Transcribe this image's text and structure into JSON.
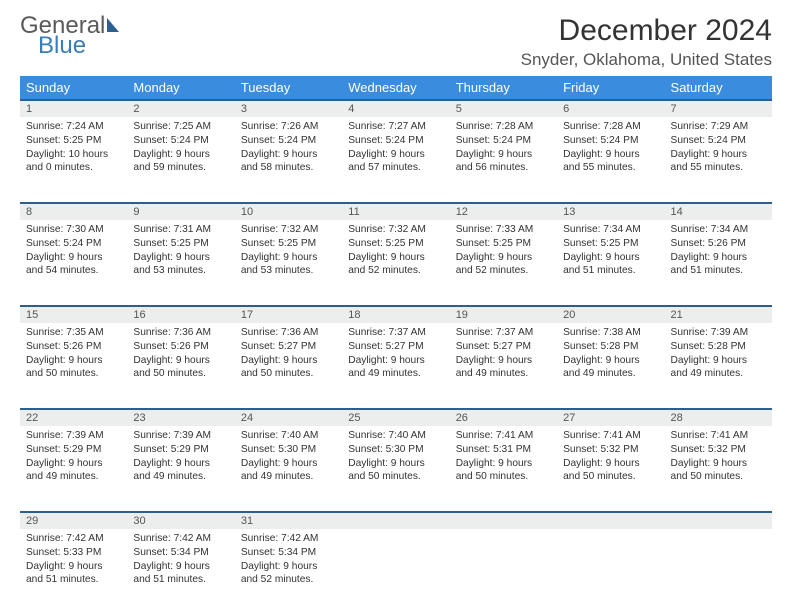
{
  "brand": {
    "part1": "General",
    "part2": "Blue"
  },
  "title": "December 2024",
  "location": "Snyder, Oklahoma, United States",
  "colors": {
    "header_bg": "#3a8dde",
    "header_text": "#ffffff",
    "rule": "#2c5f8d",
    "daynum_bg": "#eceded",
    "text": "#333333"
  },
  "day_headers": [
    "Sunday",
    "Monday",
    "Tuesday",
    "Wednesday",
    "Thursday",
    "Friday",
    "Saturday"
  ],
  "weeks": [
    [
      {
        "n": "1",
        "sr": "Sunrise: 7:24 AM",
        "ss": "Sunset: 5:25 PM",
        "dl": "Daylight: 10 hours and 0 minutes."
      },
      {
        "n": "2",
        "sr": "Sunrise: 7:25 AM",
        "ss": "Sunset: 5:24 PM",
        "dl": "Daylight: 9 hours and 59 minutes."
      },
      {
        "n": "3",
        "sr": "Sunrise: 7:26 AM",
        "ss": "Sunset: 5:24 PM",
        "dl": "Daylight: 9 hours and 58 minutes."
      },
      {
        "n": "4",
        "sr": "Sunrise: 7:27 AM",
        "ss": "Sunset: 5:24 PM",
        "dl": "Daylight: 9 hours and 57 minutes."
      },
      {
        "n": "5",
        "sr": "Sunrise: 7:28 AM",
        "ss": "Sunset: 5:24 PM",
        "dl": "Daylight: 9 hours and 56 minutes."
      },
      {
        "n": "6",
        "sr": "Sunrise: 7:28 AM",
        "ss": "Sunset: 5:24 PM",
        "dl": "Daylight: 9 hours and 55 minutes."
      },
      {
        "n": "7",
        "sr": "Sunrise: 7:29 AM",
        "ss": "Sunset: 5:24 PM",
        "dl": "Daylight: 9 hours and 55 minutes."
      }
    ],
    [
      {
        "n": "8",
        "sr": "Sunrise: 7:30 AM",
        "ss": "Sunset: 5:24 PM",
        "dl": "Daylight: 9 hours and 54 minutes."
      },
      {
        "n": "9",
        "sr": "Sunrise: 7:31 AM",
        "ss": "Sunset: 5:25 PM",
        "dl": "Daylight: 9 hours and 53 minutes."
      },
      {
        "n": "10",
        "sr": "Sunrise: 7:32 AM",
        "ss": "Sunset: 5:25 PM",
        "dl": "Daylight: 9 hours and 53 minutes."
      },
      {
        "n": "11",
        "sr": "Sunrise: 7:32 AM",
        "ss": "Sunset: 5:25 PM",
        "dl": "Daylight: 9 hours and 52 minutes."
      },
      {
        "n": "12",
        "sr": "Sunrise: 7:33 AM",
        "ss": "Sunset: 5:25 PM",
        "dl": "Daylight: 9 hours and 52 minutes."
      },
      {
        "n": "13",
        "sr": "Sunrise: 7:34 AM",
        "ss": "Sunset: 5:25 PM",
        "dl": "Daylight: 9 hours and 51 minutes."
      },
      {
        "n": "14",
        "sr": "Sunrise: 7:34 AM",
        "ss": "Sunset: 5:26 PM",
        "dl": "Daylight: 9 hours and 51 minutes."
      }
    ],
    [
      {
        "n": "15",
        "sr": "Sunrise: 7:35 AM",
        "ss": "Sunset: 5:26 PM",
        "dl": "Daylight: 9 hours and 50 minutes."
      },
      {
        "n": "16",
        "sr": "Sunrise: 7:36 AM",
        "ss": "Sunset: 5:26 PM",
        "dl": "Daylight: 9 hours and 50 minutes."
      },
      {
        "n": "17",
        "sr": "Sunrise: 7:36 AM",
        "ss": "Sunset: 5:27 PM",
        "dl": "Daylight: 9 hours and 50 minutes."
      },
      {
        "n": "18",
        "sr": "Sunrise: 7:37 AM",
        "ss": "Sunset: 5:27 PM",
        "dl": "Daylight: 9 hours and 49 minutes."
      },
      {
        "n": "19",
        "sr": "Sunrise: 7:37 AM",
        "ss": "Sunset: 5:27 PM",
        "dl": "Daylight: 9 hours and 49 minutes."
      },
      {
        "n": "20",
        "sr": "Sunrise: 7:38 AM",
        "ss": "Sunset: 5:28 PM",
        "dl": "Daylight: 9 hours and 49 minutes."
      },
      {
        "n": "21",
        "sr": "Sunrise: 7:39 AM",
        "ss": "Sunset: 5:28 PM",
        "dl": "Daylight: 9 hours and 49 minutes."
      }
    ],
    [
      {
        "n": "22",
        "sr": "Sunrise: 7:39 AM",
        "ss": "Sunset: 5:29 PM",
        "dl": "Daylight: 9 hours and 49 minutes."
      },
      {
        "n": "23",
        "sr": "Sunrise: 7:39 AM",
        "ss": "Sunset: 5:29 PM",
        "dl": "Daylight: 9 hours and 49 minutes."
      },
      {
        "n": "24",
        "sr": "Sunrise: 7:40 AM",
        "ss": "Sunset: 5:30 PM",
        "dl": "Daylight: 9 hours and 49 minutes."
      },
      {
        "n": "25",
        "sr": "Sunrise: 7:40 AM",
        "ss": "Sunset: 5:30 PM",
        "dl": "Daylight: 9 hours and 50 minutes."
      },
      {
        "n": "26",
        "sr": "Sunrise: 7:41 AM",
        "ss": "Sunset: 5:31 PM",
        "dl": "Daylight: 9 hours and 50 minutes."
      },
      {
        "n": "27",
        "sr": "Sunrise: 7:41 AM",
        "ss": "Sunset: 5:32 PM",
        "dl": "Daylight: 9 hours and 50 minutes."
      },
      {
        "n": "28",
        "sr": "Sunrise: 7:41 AM",
        "ss": "Sunset: 5:32 PM",
        "dl": "Daylight: 9 hours and 50 minutes."
      }
    ],
    [
      {
        "n": "29",
        "sr": "Sunrise: 7:42 AM",
        "ss": "Sunset: 5:33 PM",
        "dl": "Daylight: 9 hours and 51 minutes."
      },
      {
        "n": "30",
        "sr": "Sunrise: 7:42 AM",
        "ss": "Sunset: 5:34 PM",
        "dl": "Daylight: 9 hours and 51 minutes."
      },
      {
        "n": "31",
        "sr": "Sunrise: 7:42 AM",
        "ss": "Sunset: 5:34 PM",
        "dl": "Daylight: 9 hours and 52 minutes."
      },
      null,
      null,
      null,
      null
    ]
  ]
}
